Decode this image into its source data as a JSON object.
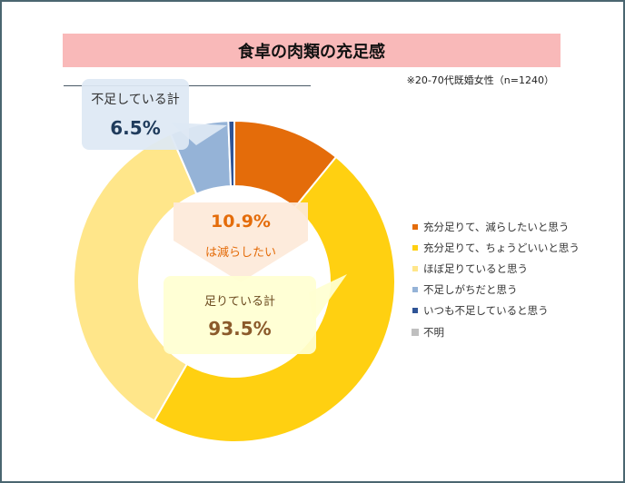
{
  "chart_data": {
    "type": "pie",
    "subtype": "donut",
    "title": "食卓の肉類の充足感",
    "note": "※20-70代既婚女性（n=1240）",
    "categories": [
      "充分足りて、減らしたいと思う",
      "充分足りて、ちょうどいいと思う",
      "ほぼ足りていると思う",
      "不足しがちだと思う",
      "いつも不足していると思う",
      "不明"
    ],
    "values": [
      10.9,
      47.4,
      35.2,
      5.9,
      0.6,
      0.0
    ],
    "colors": [
      "#e46c0a",
      "#ffd011",
      "#ffe68a",
      "#95b3d7",
      "#2f5496",
      "#bfbfbf"
    ],
    "legend_position": "right",
    "annotations": [
      {
        "label": "不足している計",
        "value": "6.5%"
      },
      {
        "label": "は減らしたい",
        "value": "10.9%"
      },
      {
        "label": "足りている計",
        "value": "93.5%"
      }
    ]
  },
  "title": "食卓の肉類の充足感",
  "note": "※20-70代既婚女性（n=1240）",
  "callouts": {
    "short": {
      "label": "不足している計",
      "value": "6.5%"
    },
    "reduce": {
      "value": "10.9%",
      "label": "は減らしたい"
    },
    "enough": {
      "label": "足りている計",
      "value": "93.5%"
    }
  },
  "legend": [
    {
      "label": "充分足りて、減らしたいと思う",
      "color": "#e46c0a"
    },
    {
      "label": "充分足りて、ちょうどいいと思う",
      "color": "#ffd011"
    },
    {
      "label": "ほぼ足りていると思う",
      "color": "#ffe68a"
    },
    {
      "label": "不足しがちだと思う",
      "color": "#95b3d7"
    },
    {
      "label": "いつも不足していると思う",
      "color": "#2f5496"
    },
    {
      "label": "不明",
      "color": "#bfbfbf"
    }
  ]
}
